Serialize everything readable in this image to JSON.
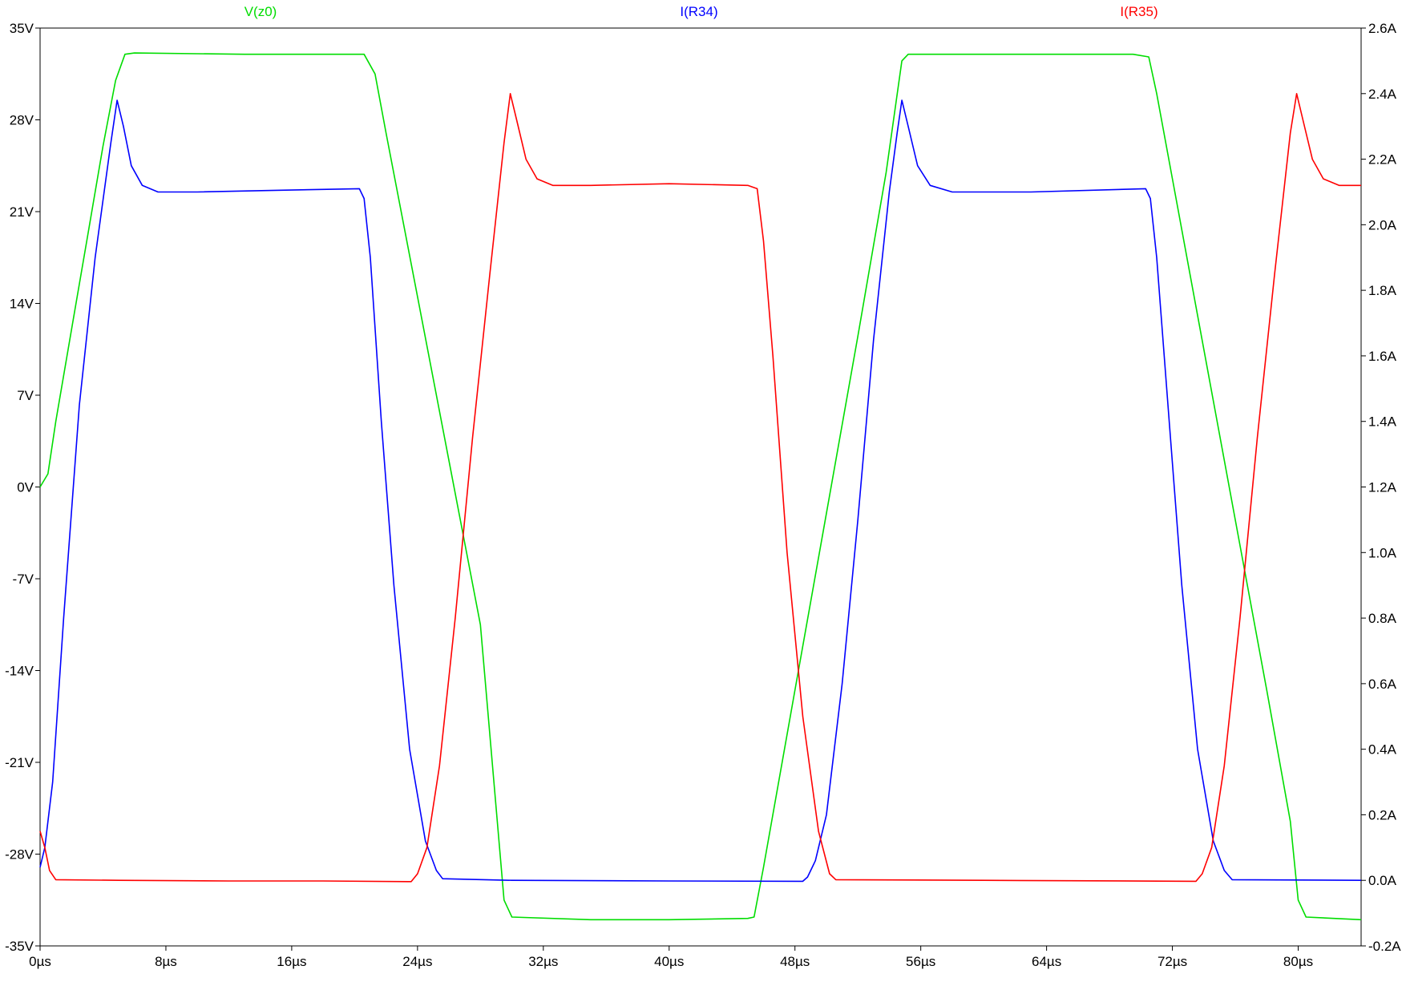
{
  "chart_data": {
    "type": "line",
    "x_unit": "µs",
    "xlim": [
      0,
      84
    ],
    "x_ticks": [
      0,
      8,
      16,
      24,
      32,
      40,
      48,
      56,
      64,
      72,
      80
    ],
    "x_tick_labels": [
      "0µs",
      "8µs",
      "16µs",
      "24µs",
      "32µs",
      "40µs",
      "48µs",
      "56µs",
      "64µs",
      "72µs",
      "80µs"
    ],
    "y_left": {
      "lim": [
        -35,
        35
      ],
      "ticks": [
        35,
        28,
        21,
        14,
        7,
        0,
        -7,
        -14,
        -21,
        -28,
        -35
      ],
      "tick_labels": [
        "35V",
        "28V",
        "21V",
        "14V",
        "7V",
        "0V",
        "-7V",
        "-14V",
        "-21V",
        "-28V",
        "-35V"
      ]
    },
    "y_right": {
      "lim": [
        -0.2,
        2.6
      ],
      "ticks": [
        2.6,
        2.4,
        2.2,
        2.0,
        1.8,
        1.6,
        1.4,
        1.2,
        1.0,
        0.8,
        0.6,
        0.4,
        0.2,
        0.0,
        -0.2
      ],
      "tick_labels": [
        "2.6A",
        "2.4A",
        "2.2A",
        "2.0A",
        "1.8A",
        "1.6A",
        "1.4A",
        "1.2A",
        "1.0A",
        "0.8A",
        "0.6A",
        "0.4A",
        "0.2A",
        "0.0A",
        "-0.2A"
      ]
    },
    "grid": false,
    "legend_position": "top",
    "series": [
      {
        "name": "V(z0)",
        "axis": "left",
        "color": "#00dd00",
        "points": [
          [
            0,
            0
          ],
          [
            0.5,
            1
          ],
          [
            1,
            5
          ],
          [
            2,
            12
          ],
          [
            3,
            19
          ],
          [
            4,
            26
          ],
          [
            4.8,
            31
          ],
          [
            5.4,
            33
          ],
          [
            6,
            33.1
          ],
          [
            13,
            33
          ],
          [
            20.3,
            33
          ],
          [
            20.6,
            33
          ],
          [
            21.3,
            31.5
          ],
          [
            22,
            27
          ],
          [
            24,
            14.5
          ],
          [
            26,
            2
          ],
          [
            28,
            -10.5
          ],
          [
            29.5,
            -31.5
          ],
          [
            30,
            -32.8
          ],
          [
            35,
            -33
          ],
          [
            40,
            -33
          ],
          [
            45,
            -32.9
          ],
          [
            45.4,
            -32.8
          ],
          [
            46,
            -29
          ],
          [
            48,
            -15.5
          ],
          [
            50,
            -2
          ],
          [
            52,
            11.5
          ],
          [
            53.8,
            24
          ],
          [
            54.8,
            32.5
          ],
          [
            55.2,
            33
          ],
          [
            62,
            33
          ],
          [
            69.5,
            33
          ],
          [
            70.5,
            32.8
          ],
          [
            71,
            30
          ],
          [
            72,
            23.5
          ],
          [
            74,
            10.5
          ],
          [
            76,
            -2.5
          ],
          [
            78,
            -15.5
          ],
          [
            79.5,
            -25.5
          ],
          [
            80,
            -31.5
          ],
          [
            80.5,
            -32.8
          ],
          [
            84,
            -33
          ]
        ]
      },
      {
        "name": "I(R34)",
        "axis": "right",
        "color": "#0000ff",
        "points": [
          [
            0,
            0.04
          ],
          [
            0.3,
            0.1
          ],
          [
            0.8,
            0.3
          ],
          [
            1.5,
            0.8
          ],
          [
            2.5,
            1.45
          ],
          [
            3.5,
            1.9
          ],
          [
            4.5,
            2.25
          ],
          [
            4.9,
            2.38
          ],
          [
            5.3,
            2.3
          ],
          [
            5.8,
            2.18
          ],
          [
            6.5,
            2.12
          ],
          [
            7.5,
            2.1
          ],
          [
            10,
            2.1
          ],
          [
            15,
            2.105
          ],
          [
            20.3,
            2.11
          ],
          [
            20.6,
            2.08
          ],
          [
            21,
            1.9
          ],
          [
            21.7,
            1.4
          ],
          [
            22.5,
            0.9
          ],
          [
            23.5,
            0.4
          ],
          [
            24.5,
            0.12
          ],
          [
            25.2,
            0.03
          ],
          [
            25.6,
            0.005
          ],
          [
            30,
            0
          ],
          [
            40,
            -0.002
          ],
          [
            48.5,
            -0.003
          ],
          [
            48.8,
            0.01
          ],
          [
            49.3,
            0.06
          ],
          [
            50,
            0.2
          ],
          [
            51,
            0.6
          ],
          [
            52,
            1.1
          ],
          [
            53,
            1.65
          ],
          [
            54,
            2.1
          ],
          [
            54.5,
            2.28
          ],
          [
            54.8,
            2.38
          ],
          [
            55.2,
            2.3
          ],
          [
            55.8,
            2.18
          ],
          [
            56.6,
            2.12
          ],
          [
            58,
            2.1
          ],
          [
            63,
            2.1
          ],
          [
            70.3,
            2.11
          ],
          [
            70.6,
            2.08
          ],
          [
            71,
            1.9
          ],
          [
            71.8,
            1.4
          ],
          [
            72.6,
            0.9
          ],
          [
            73.6,
            0.4
          ],
          [
            74.6,
            0.12
          ],
          [
            75.3,
            0.03
          ],
          [
            75.8,
            0.002
          ],
          [
            84,
            0
          ]
        ]
      },
      {
        "name": "I(R35)",
        "axis": "right",
        "color": "#ff0000",
        "points": [
          [
            0,
            0.15
          ],
          [
            0.3,
            0.1
          ],
          [
            0.6,
            0.03
          ],
          [
            1,
            0.002
          ],
          [
            5,
            0
          ],
          [
            12,
            -0.002
          ],
          [
            18,
            -0.002
          ],
          [
            23.6,
            -0.004
          ],
          [
            24,
            0.02
          ],
          [
            24.6,
            0.1
          ],
          [
            25.4,
            0.35
          ],
          [
            26.4,
            0.8
          ],
          [
            27.5,
            1.35
          ],
          [
            28.6,
            1.85
          ],
          [
            29.5,
            2.25
          ],
          [
            29.9,
            2.4
          ],
          [
            30.3,
            2.32
          ],
          [
            30.9,
            2.2
          ],
          [
            31.6,
            2.14
          ],
          [
            32.6,
            2.12
          ],
          [
            35,
            2.12
          ],
          [
            40,
            2.125
          ],
          [
            45,
            2.12
          ],
          [
            45.6,
            2.11
          ],
          [
            46,
            1.95
          ],
          [
            46.6,
            1.6
          ],
          [
            47.5,
            1.0
          ],
          [
            48.5,
            0.5
          ],
          [
            49.5,
            0.15
          ],
          [
            50.2,
            0.02
          ],
          [
            50.6,
            0.002
          ],
          [
            60,
            0
          ],
          [
            73.5,
            -0.003
          ],
          [
            73.9,
            0.02
          ],
          [
            74.5,
            0.1
          ],
          [
            75.3,
            0.35
          ],
          [
            76.3,
            0.8
          ],
          [
            77.4,
            1.35
          ],
          [
            78.5,
            1.85
          ],
          [
            79.5,
            2.28
          ],
          [
            79.9,
            2.4
          ],
          [
            80.3,
            2.32
          ],
          [
            80.9,
            2.2
          ],
          [
            81.6,
            2.14
          ],
          [
            82.6,
            2.12
          ],
          [
            84,
            2.12
          ]
        ]
      }
    ]
  }
}
